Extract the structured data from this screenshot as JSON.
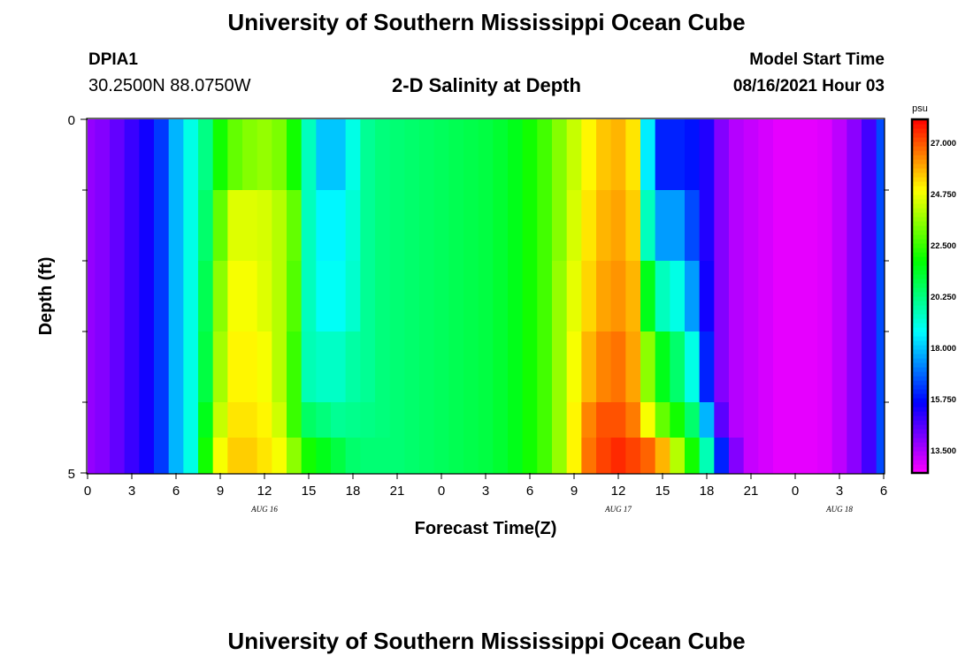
{
  "header": {
    "title": "University of Southern Mississippi Ocean Cube",
    "station_id": "DPIA1",
    "coordinates": "30.2500N  88.0750W",
    "chart_title": "2-D Salinity at Depth",
    "model_start_label": "Model Start Time",
    "model_start_value": "08/16/2021 Hour 03"
  },
  "footer": {
    "title": "University of Southern Mississippi Ocean Cube"
  },
  "chart_data": {
    "type": "heatmap",
    "title": "2-D Salinity at Depth",
    "xlabel": "Forecast Time(Z)",
    "ylabel": "Depth (ft)",
    "x_tick_labels": [
      "0",
      "3",
      "6",
      "9",
      "12",
      "15",
      "18",
      "21",
      "0",
      "3",
      "6",
      "9",
      "12",
      "15",
      "18",
      "21",
      "0",
      "3",
      "6"
    ],
    "x_tick_hours": [
      0,
      3,
      6,
      9,
      12,
      15,
      18,
      21,
      24,
      27,
      30,
      33,
      36,
      39,
      42,
      45,
      48,
      51,
      54
    ],
    "date_labels": [
      {
        "label": "AUG 16",
        "hour": 12
      },
      {
        "label": "AUG 17",
        "hour": 36
      },
      {
        "label": "AUG 18",
        "hour": 51
      }
    ],
    "xlim": [
      0,
      54
    ],
    "ylim": [
      0,
      5
    ],
    "y_tick_labels": [
      "0",
      "5"
    ],
    "y_minor_ticks": [
      1,
      2,
      3,
      4
    ],
    "colorbar": {
      "unit": "psu",
      "tick_labels": [
        "27.000",
        "24.750",
        "22.500",
        "20.250",
        "18.000",
        "15.750",
        "13.500"
      ],
      "tick_values": [
        27.0,
        24.75,
        22.5,
        20.25,
        18.0,
        15.75,
        13.5
      ],
      "range": [
        12.5,
        28.0
      ]
    },
    "depth_levels": [
      0,
      1,
      2,
      3,
      4,
      4.5
    ],
    "x_hours": [
      0,
      1,
      2,
      3,
      4,
      5,
      6,
      7,
      8,
      9,
      10,
      11,
      12,
      13,
      14,
      15,
      16,
      17,
      18,
      19,
      20,
      21,
      22,
      23,
      24,
      25,
      26,
      27,
      28,
      29,
      30,
      31,
      32,
      33,
      34,
      35,
      36,
      37,
      38,
      39,
      40,
      41,
      42,
      43,
      44,
      45,
      46,
      47,
      48,
      49,
      50,
      51,
      52,
      53,
      54
    ],
    "values": [
      [
        13.8,
        14.0,
        14.4,
        14.9,
        15.4,
        16.3,
        17.8,
        19.0,
        20.2,
        22.0,
        23.0,
        23.4,
        23.6,
        23.3,
        22.0,
        19.5,
        18.0,
        18.0,
        19.0,
        20.0,
        20.3,
        20.4,
        20.5,
        20.6,
        20.7,
        20.8,
        20.9,
        21.0,
        21.2,
        21.5,
        22.0,
        22.6,
        23.4,
        24.2,
        25.0,
        25.6,
        25.8,
        25.2,
        18.5,
        16.0,
        16.0,
        15.8,
        15.2,
        14.0,
        13.4,
        13.2,
        13.0,
        12.8,
        12.8,
        12.8,
        12.9,
        13.3,
        13.9,
        14.8,
        16.5
      ],
      [
        13.8,
        14.0,
        14.4,
        14.9,
        15.4,
        16.3,
        17.8,
        19.0,
        20.5,
        23.0,
        24.5,
        24.5,
        24.4,
        24.0,
        23.0,
        19.5,
        18.6,
        18.6,
        19.2,
        20.0,
        20.3,
        20.4,
        20.5,
        20.6,
        20.7,
        20.8,
        20.9,
        21.0,
        21.2,
        21.5,
        22.0,
        22.6,
        23.4,
        24.4,
        25.2,
        25.8,
        26.0,
        25.5,
        19.5,
        17.5,
        17.5,
        16.5,
        15.2,
        14.0,
        13.4,
        13.2,
        13.0,
        12.8,
        12.8,
        12.8,
        12.9,
        13.3,
        13.9,
        14.8,
        16.5
      ],
      [
        13.8,
        14.0,
        14.4,
        14.9,
        15.4,
        16.3,
        17.8,
        19.0,
        20.8,
        23.5,
        24.8,
        24.8,
        24.5,
        24.0,
        22.8,
        19.5,
        18.8,
        18.8,
        19.3,
        20.0,
        20.3,
        20.4,
        20.5,
        20.6,
        20.7,
        20.8,
        20.9,
        21.0,
        21.2,
        21.5,
        22.0,
        22.6,
        23.6,
        24.6,
        25.4,
        26.0,
        26.2,
        25.8,
        21.5,
        19.5,
        19.0,
        17.5,
        15.4,
        14.0,
        13.4,
        13.2,
        13.0,
        12.8,
        12.8,
        12.8,
        12.9,
        13.3,
        13.9,
        14.8,
        16.5
      ],
      [
        13.8,
        14.0,
        14.4,
        14.9,
        15.4,
        16.3,
        17.8,
        19.0,
        21.0,
        23.8,
        25.0,
        25.0,
        24.8,
        24.0,
        22.5,
        19.6,
        19.4,
        19.4,
        19.8,
        20.0,
        20.3,
        20.4,
        20.5,
        20.6,
        20.7,
        20.8,
        20.9,
        21.0,
        21.2,
        21.5,
        22.0,
        22.6,
        23.6,
        24.8,
        25.8,
        26.4,
        26.6,
        26.0,
        23.5,
        21.5,
        20.5,
        19.0,
        16.0,
        14.0,
        13.4,
        13.2,
        13.0,
        12.8,
        12.8,
        12.8,
        12.9,
        13.3,
        13.9,
        14.8,
        16.5
      ],
      [
        13.8,
        14.0,
        14.4,
        14.9,
        15.4,
        16.3,
        17.8,
        19.0,
        21.5,
        24.2,
        25.2,
        25.2,
        25.0,
        24.3,
        22.5,
        20.6,
        20.3,
        20.0,
        20.1,
        20.2,
        20.3,
        20.4,
        20.5,
        20.6,
        20.7,
        20.8,
        20.9,
        21.0,
        21.2,
        21.5,
        22.0,
        22.6,
        23.6,
        25.0,
        26.4,
        27.0,
        27.0,
        26.5,
        24.8,
        23.0,
        22.0,
        20.5,
        17.8,
        14.5,
        13.4,
        13.2,
        13.0,
        12.8,
        12.8,
        12.8,
        12.9,
        13.3,
        13.9,
        14.8,
        16.5
      ],
      [
        13.8,
        14.0,
        14.4,
        14.9,
        15.4,
        16.3,
        17.8,
        19.0,
        22.0,
        24.8,
        25.5,
        25.5,
        25.2,
        24.8,
        23.5,
        22.0,
        21.5,
        21.0,
        20.5,
        20.4,
        20.4,
        20.4,
        20.5,
        20.6,
        20.7,
        20.8,
        20.9,
        21.0,
        21.2,
        21.5,
        22.0,
        22.6,
        23.6,
        25.0,
        26.6,
        27.2,
        27.5,
        27.2,
        26.8,
        25.8,
        24.0,
        22.0,
        19.6,
        16.0,
        14.0,
        13.2,
        13.0,
        12.8,
        12.8,
        12.8,
        12.9,
        13.3,
        13.9,
        14.8,
        16.5
      ]
    ]
  }
}
